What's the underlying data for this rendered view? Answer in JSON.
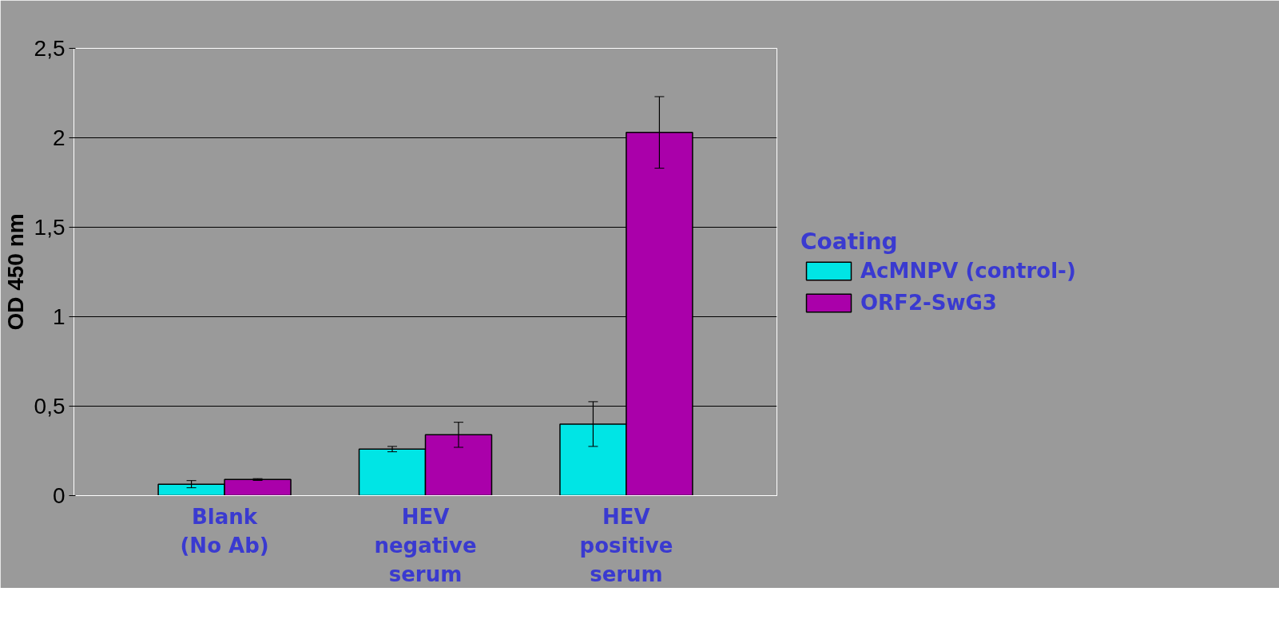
{
  "chart_data": {
    "type": "bar",
    "ylabel": "OD 450 nm",
    "legend_title": "Coating",
    "legend": "right",
    "grid": "y",
    "categories": [
      "Blank (No Ab)",
      "HEV negative serum",
      "HEV positive serum"
    ],
    "ylim": [
      0,
      2.5
    ],
    "yticks": [
      0,
      {
        "value": 0.5,
        "label": "0,5"
      },
      1,
      {
        "value": 1.5,
        "label": "1,5"
      },
      2,
      {
        "value": 2.5,
        "label": "2,5"
      }
    ],
    "series": [
      {
        "name": "AcMNPV (control-)",
        "color": "#00e5e5",
        "values": [
          0.064,
          0.26,
          0.4
        ],
        "errors": [
          0.02,
          0.015,
          0.125
        ]
      },
      {
        "name": "ORF2-SwG3",
        "color": "#aa00aa",
        "values": [
          0.09,
          0.34,
          2.03
        ],
        "errors": [
          0.005,
          0.07,
          0.2
        ]
      }
    ]
  }
}
